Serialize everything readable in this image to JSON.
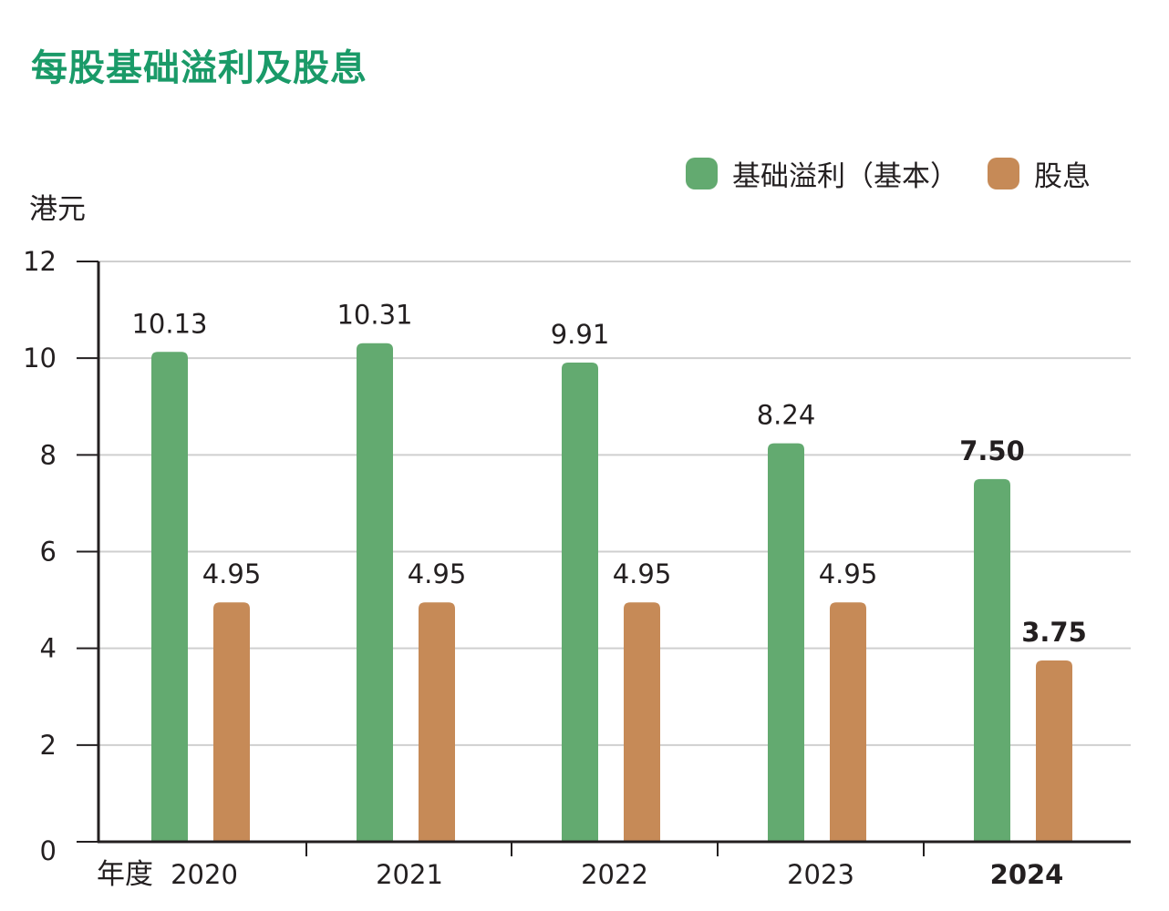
{
  "title": "每股基础溢利及股息",
  "unit_label": "港元",
  "x_axis_prefix": "年度",
  "colors": {
    "title": "#1a9a68",
    "earnings": "#63aa70",
    "dividend": "#c68a57",
    "grid": "#cfcfcf",
    "axis": "#231f20",
    "text": "#231f20"
  },
  "legend": [
    {
      "label": "基础溢利（基本）",
      "color": "#63aa70"
    },
    {
      "label": "股息",
      "color": "#c68a57"
    }
  ],
  "chart_data": {
    "type": "bar",
    "title": "每股基础溢利及股息",
    "ylabel": "港元",
    "xlabel": "年度",
    "categories": [
      "2020",
      "2021",
      "2022",
      "2023",
      "2024"
    ],
    "highlight_category": "2024",
    "series": [
      {
        "name": "基础溢利（基本）",
        "values": [
          10.13,
          10.31,
          9.91,
          8.24,
          7.5
        ],
        "labels": [
          "10.13",
          "10.31",
          "9.91",
          "8.24",
          "7.50"
        ]
      },
      {
        "name": "股息",
        "values": [
          4.95,
          4.95,
          4.95,
          4.95,
          3.75
        ],
        "labels": [
          "4.95",
          "4.95",
          "4.95",
          "4.95",
          "3.75"
        ]
      }
    ],
    "ylim": [
      0,
      12
    ],
    "yticks": [
      "0",
      "2",
      "4",
      "6",
      "8",
      "10",
      "12"
    ],
    "grid": true,
    "legend_position": "top-right"
  }
}
